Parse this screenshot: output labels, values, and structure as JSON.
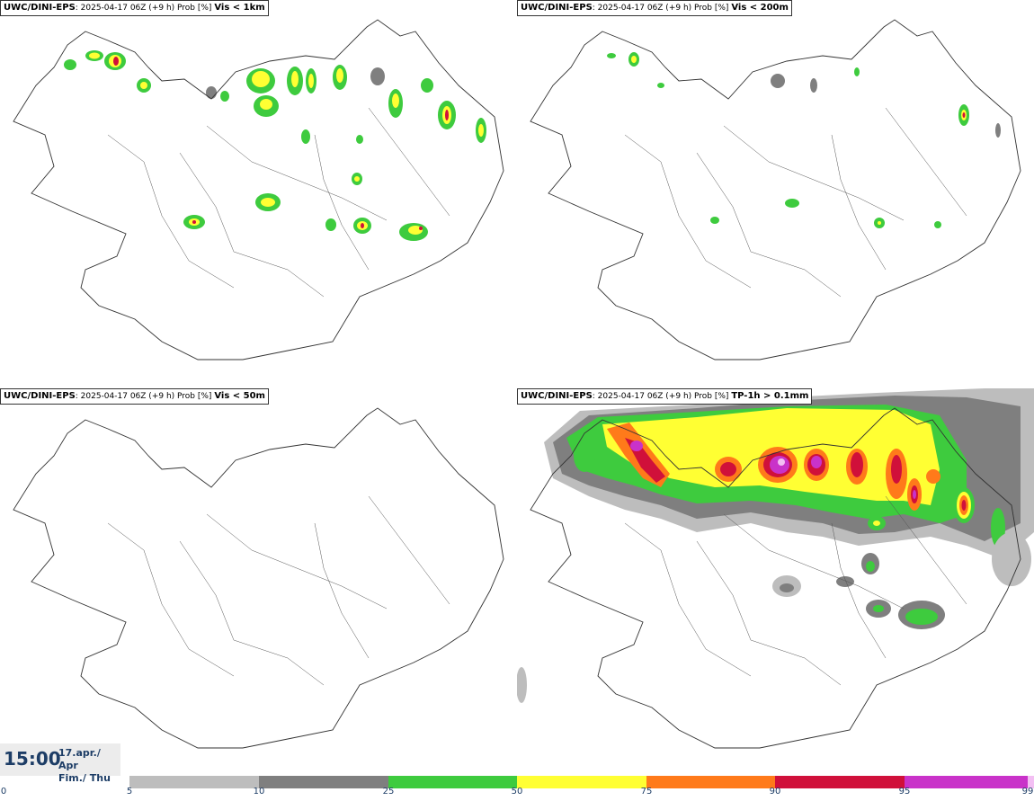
{
  "panels": [
    {
      "source": "UWC/DINI-EPS",
      "run": ": 2025-04-17 06Z (+9 h) Prob [%]",
      "variable": "Vis < 1km"
    },
    {
      "source": "UWC/DINI-EPS",
      "run": ": 2025-04-17 06Z (+9 h) Prob [%]",
      "variable": "Vis < 200m"
    },
    {
      "source": "UWC/DINI-EPS",
      "run": ": 2025-04-17 06Z (+9 h) Prob [%]",
      "variable": "Vis < 50m"
    },
    {
      "source": "UWC/DINI-EPS",
      "run": ": 2025-04-17 06Z (+9 h) Prob [%]",
      "variable": "TP-1h > 0.1mm"
    }
  ],
  "valid_time": {
    "time": "15:00",
    "date_line1": "17.apr./ Apr",
    "date_line2": "Fim./ Thu"
  },
  "colorbar": {
    "ticks": [
      "0",
      "5",
      "10",
      "25",
      "50",
      "75",
      "90",
      "95",
      "99"
    ],
    "colors": [
      "#ffffff",
      "#bdbdbd",
      "#7f7f7f",
      "#3ecb3e",
      "#ffff33",
      "#ff7a1a",
      "#d0103a",
      "#c932c9",
      "#f3bff3"
    ]
  },
  "colors": {
    "gray_light": "#bdbdbd",
    "gray_dark": "#7f7f7f",
    "green": "#3ecb3e",
    "yellow": "#ffff33",
    "orange": "#ff7a1a",
    "red": "#d0103a",
    "magenta": "#c932c9",
    "pink": "#f3bff3"
  }
}
